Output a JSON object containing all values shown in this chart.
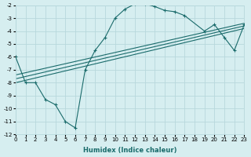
{
  "xlabel": "Humidex (Indice chaleur)",
  "background_color": "#d6eef0",
  "grid_color": "#b8d8dc",
  "line_color": "#1a6b6b",
  "xlim": [
    0,
    23
  ],
  "ylim": [
    -12,
    -2
  ],
  "yticks": [
    -12,
    -11,
    -10,
    -9,
    -8,
    -7,
    -6,
    -5,
    -4,
    -3,
    -2
  ],
  "xticks": [
    0,
    1,
    2,
    3,
    4,
    5,
    6,
    7,
    8,
    9,
    10,
    11,
    12,
    13,
    14,
    15,
    16,
    17,
    18,
    19,
    20,
    21,
    22,
    23
  ],
  "series1_x": [
    0,
    1,
    2,
    3,
    4,
    5,
    6,
    7,
    8,
    9,
    10,
    11,
    12,
    13,
    14,
    15,
    16,
    17,
    19,
    20,
    21,
    22,
    23
  ],
  "series1_y": [
    -6.0,
    -8.0,
    -8.0,
    -9.3,
    -9.7,
    -11.0,
    -11.5,
    -7.0,
    -5.5,
    -4.5,
    -3.0,
    -2.3,
    -1.9,
    -1.9,
    -2.1,
    -2.4,
    -2.5,
    -2.8,
    -4.0,
    -3.5,
    -4.5,
    -5.5,
    -3.5
  ],
  "series2_x": [
    0,
    23
  ],
  "series2_y": [
    -8.0,
    -3.8
  ],
  "series3_x": [
    0,
    23
  ],
  "series3_y": [
    -7.7,
    -3.6
  ],
  "series4_x": [
    0,
    23
  ],
  "series4_y": [
    -7.4,
    -3.4
  ]
}
